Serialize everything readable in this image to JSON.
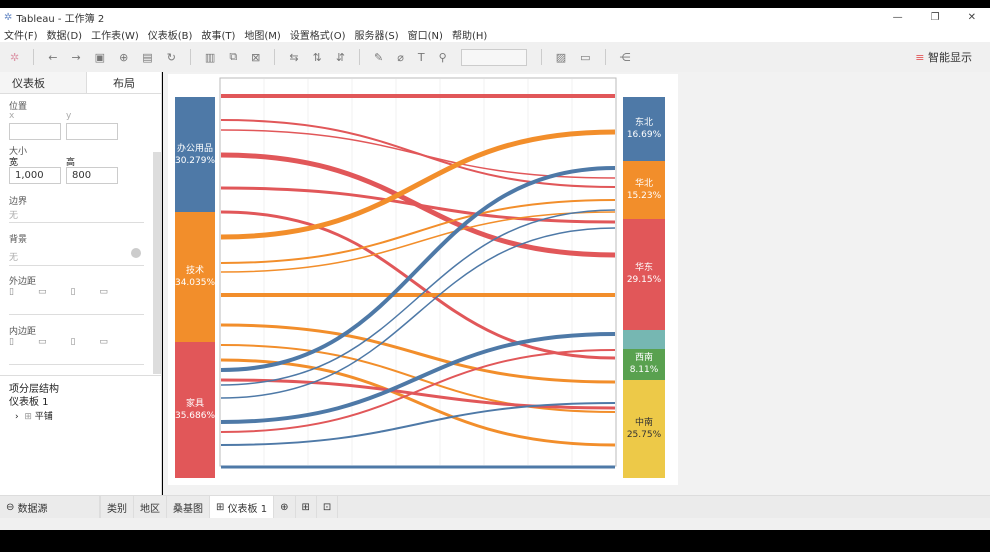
{
  "window": {
    "title": "Tableau - 工作簿 2",
    "controls": [
      "—",
      "❐",
      "✕"
    ]
  },
  "menu": [
    "文件(F)",
    "数据(D)",
    "工作表(W)",
    "仪表板(B)",
    "故事(T)",
    "地图(M)",
    "设置格式(O)",
    "服务器(S)",
    "窗口(N)",
    "帮助(H)"
  ],
  "toolbar": {
    "smart_show": "智能显示"
  },
  "panel": {
    "tabs": [
      "仪表板",
      "布局"
    ],
    "position": "位置",
    "x": "x",
    "y": "y",
    "size": "大小",
    "width_label": "宽",
    "height_label": "高",
    "width": "1,000",
    "height": "800",
    "border": "边界",
    "border_value": "无",
    "background": "背景",
    "background_value": "无",
    "outer_padding": "外边距",
    "inner_padding": "内边距",
    "hierarchy": "项分层结构",
    "dashboard": "仪表板 1",
    "tiled": "平铺"
  },
  "sheets": {
    "datasource": "数据源",
    "tabs": [
      "类别",
      "地区",
      "桑基图",
      "仪表板 1"
    ]
  },
  "chart_data": {
    "type": "sankey",
    "left": [
      {
        "name": "办公用品",
        "pct": "30.279%",
        "value": 30.279,
        "color": "#4e79a7"
      },
      {
        "name": "技术",
        "pct": "34.035%",
        "value": 34.035,
        "color": "#f28e2b"
      },
      {
        "name": "家具",
        "pct": "35.686%",
        "value": 35.686,
        "color": "#e15759"
      }
    ],
    "right": [
      {
        "name": "东北",
        "pct": "16.69%",
        "value": 16.69,
        "color": "#4e79a7"
      },
      {
        "name": "华北",
        "pct": "15.23%",
        "value": 15.23,
        "color": "#f28e2b"
      },
      {
        "name": "华东",
        "pct": "29.15%",
        "value": 29.15,
        "color": "#e15759"
      },
      {
        "name": "",
        "pct": "",
        "value": 5.07,
        "color": "#76b7b2"
      },
      {
        "name": "西南",
        "pct": "8.11%",
        "value": 8.11,
        "color": "#59a14f"
      },
      {
        "name": "中南",
        "pct": "25.75%",
        "value": 25.75,
        "color": "#edc948"
      }
    ]
  }
}
